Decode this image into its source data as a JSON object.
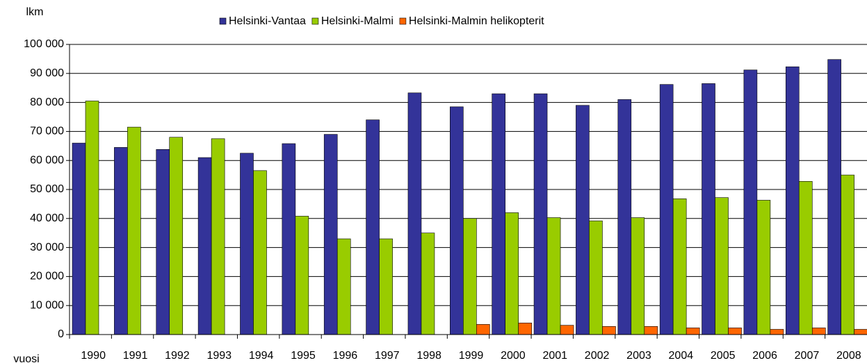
{
  "chart_data": {
    "type": "bar",
    "y_label": "lkm",
    "x_label": "vuosi",
    "categories": [
      "1990",
      "1991",
      "1992",
      "1993",
      "1994",
      "1995",
      "1996",
      "1997",
      "1998",
      "1999",
      "2000",
      "2001",
      "2002",
      "2003",
      "2004",
      "2005",
      "2006",
      "2007",
      "2008"
    ],
    "series": [
      {
        "name": "Helsinki-Vantaa",
        "color": "#333399",
        "values": [
          66000,
          64500,
          63800,
          61000,
          62500,
          65800,
          69000,
          74000,
          83300,
          78500,
          83000,
          83000,
          79000,
          81000,
          86200,
          86500,
          91200,
          92300,
          94800
        ]
      },
      {
        "name": "Helsinki-Malmi",
        "color": "#99cc00",
        "values": [
          80500,
          71500,
          68000,
          67500,
          56500,
          40800,
          33000,
          33000,
          35000,
          40000,
          42000,
          40300,
          39200,
          40300,
          46800,
          47200,
          46300,
          52800,
          55000
        ]
      },
      {
        "name": "Helsinki-Malmin helikopterit",
        "color": "#ff6600",
        "values": [
          null,
          null,
          null,
          null,
          null,
          null,
          null,
          null,
          null,
          3500,
          4000,
          3200,
          2800,
          2800,
          2300,
          2300,
          1800,
          2300,
          1800
        ]
      }
    ],
    "ylim": [
      0,
      100000
    ],
    "yticks": [
      0,
      {
        "value": 10000,
        "label": "10 000"
      },
      {
        "value": 20000,
        "label": "20 000"
      },
      {
        "value": 30000,
        "label": "30 000"
      },
      {
        "value": 40000,
        "label": "40 000"
      },
      {
        "value": 50000,
        "label": "50 000"
      },
      {
        "value": 60000,
        "label": "60 000"
      },
      {
        "value": 70000,
        "label": "70 000"
      },
      {
        "value": 80000,
        "label": "80 000"
      },
      {
        "value": 90000,
        "label": "90 000"
      },
      {
        "value": 100000,
        "label": "100 000"
      }
    ],
    "grid": true,
    "legend": "top"
  }
}
